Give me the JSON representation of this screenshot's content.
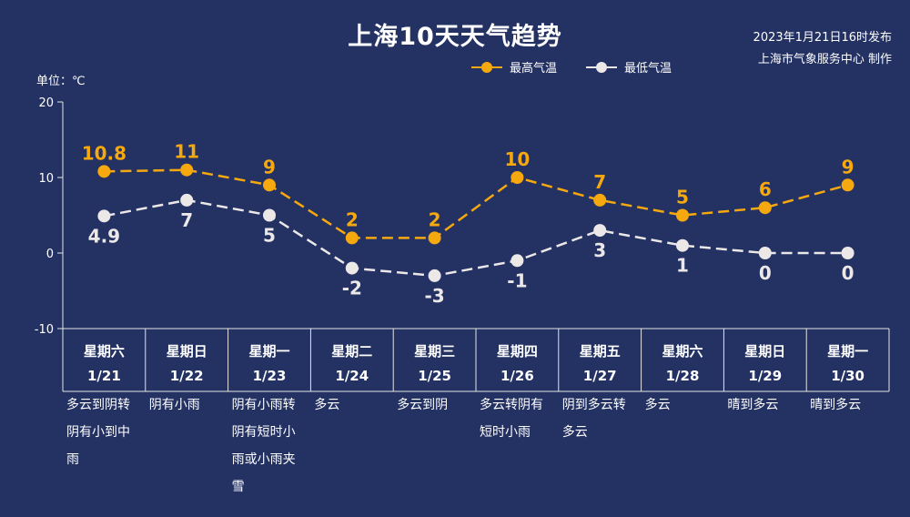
{
  "header": {
    "title": "上海10天天气趋势",
    "publish_time": "2023年1月21日16时发布",
    "publisher": "上海市气象服务中心 制作"
  },
  "chart_data": {
    "type": "line",
    "title": "上海10天天气趋势",
    "ylabel": "单位：℃",
    "ylim": [
      -10,
      20
    ],
    "yticks": [
      "20",
      "10",
      "0",
      "-10"
    ],
    "grid": false,
    "legend": "top-right",
    "categories": [
      "星期六",
      "星期日",
      "星期一",
      "星期二",
      "星期三",
      "星期四",
      "星期五",
      "星期六",
      "星期日",
      "星期一"
    ],
    "dates": [
      "1/21",
      "1/22",
      "1/23",
      "1/24",
      "1/25",
      "1/26",
      "1/27",
      "1/28",
      "1/29",
      "1/30"
    ],
    "series": [
      {
        "name": "最高气温",
        "color": "#f6a80f",
        "values": [
          10.8,
          11,
          9,
          2,
          2,
          10,
          7,
          5,
          6,
          9
        ],
        "labels": [
          "10.8",
          "11",
          "9",
          "2",
          "2",
          "10",
          "7",
          "5",
          "6",
          "9"
        ]
      },
      {
        "name": "最低气温",
        "color": "#ece8e8",
        "values": [
          4.9,
          7,
          5,
          -2,
          -3,
          -1,
          3,
          1,
          0,
          0
        ],
        "labels": [
          "4.9",
          "7",
          "5",
          "-2",
          "-3",
          "-1",
          "3",
          "1",
          "0",
          "0"
        ]
      }
    ]
  },
  "weather": [
    "多云到阴转阴有小到中雨",
    "阴有小雨",
    "阴有小雨转阴有短时小雨或小雨夹雪",
    "多云",
    "多云到阴",
    "多云转阴有短时小雨",
    "阴到多云转多云",
    "多云",
    "晴到多云",
    "晴到多云"
  ],
  "colors": {
    "background": "#233163",
    "axis": "#e6e6e6",
    "high": "#f6a80f",
    "low": "#ece8e8"
  }
}
